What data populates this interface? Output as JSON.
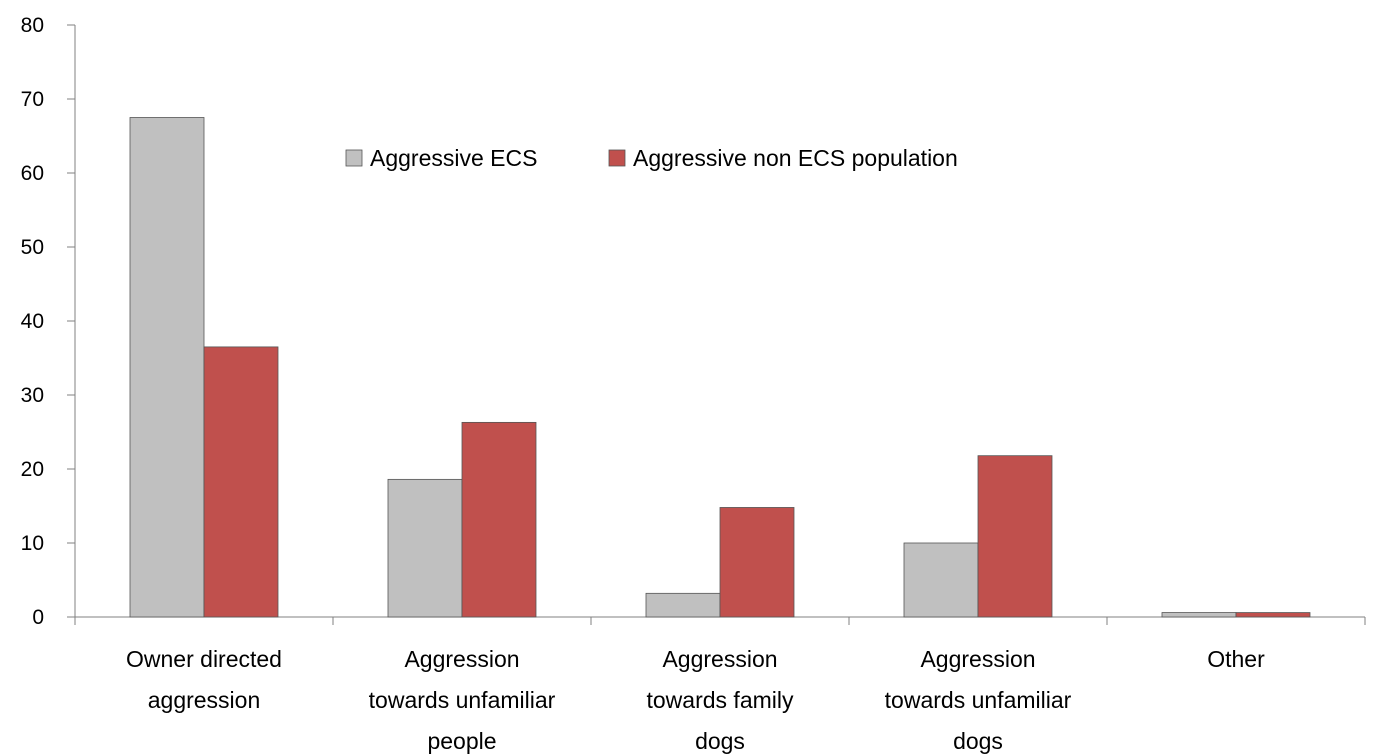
{
  "chart_data": {
    "type": "bar",
    "categories": [
      [
        "Owner directed",
        "aggression"
      ],
      [
        "Aggression",
        "towards unfamiliar",
        "people"
      ],
      [
        "Aggression",
        "towards family",
        "dogs"
      ],
      [
        "Aggression",
        "towards unfamiliar",
        "dogs"
      ],
      [
        "Other"
      ]
    ],
    "series": [
      {
        "name": "Aggressive ECS",
        "color": "#c0c0c0",
        "values": [
          67.5,
          18.6,
          3.2,
          10.0,
          0.6
        ]
      },
      {
        "name": "Aggressive non ECS population",
        "color": "#c0504d",
        "values": [
          36.5,
          26.3,
          14.8,
          21.8,
          0.6
        ]
      }
    ],
    "title": "",
    "xlabel": "",
    "ylabel": "",
    "ylim": [
      0,
      80
    ],
    "yticks": [
      "0",
      "10",
      "20",
      "30",
      "40",
      "50",
      "60",
      "70",
      "80"
    ],
    "grid": false,
    "legend_position": "top-center"
  }
}
